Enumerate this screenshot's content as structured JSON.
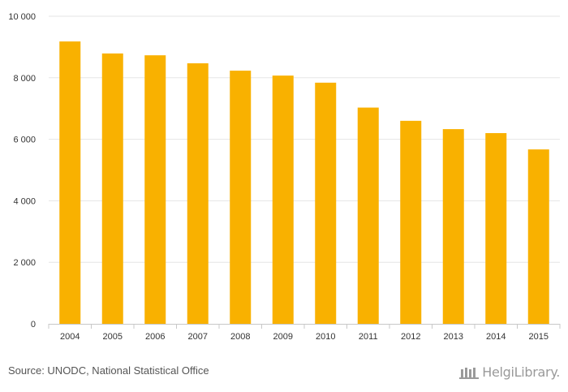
{
  "chart_data": {
    "type": "bar",
    "categories": [
      "2004",
      "2005",
      "2006",
      "2007",
      "2008",
      "2009",
      "2010",
      "2011",
      "2012",
      "2013",
      "2014",
      "2015"
    ],
    "values": [
      9180,
      8790,
      8730,
      8470,
      8230,
      8070,
      7840,
      7030,
      6600,
      6330,
      6200,
      5670
    ],
    "ylim": [
      0,
      10000
    ],
    "yticks": [
      0,
      2000,
      4000,
      6000,
      8000,
      10000
    ],
    "ytick_labels": [
      "0",
      "2 000",
      "4 000",
      "6 000",
      "8 000",
      "10 000"
    ],
    "grid": true,
    "bar_color": "#f9b100"
  },
  "source": "Source: UNODC, National Statistical Office",
  "logo": "HelgiLibrary."
}
